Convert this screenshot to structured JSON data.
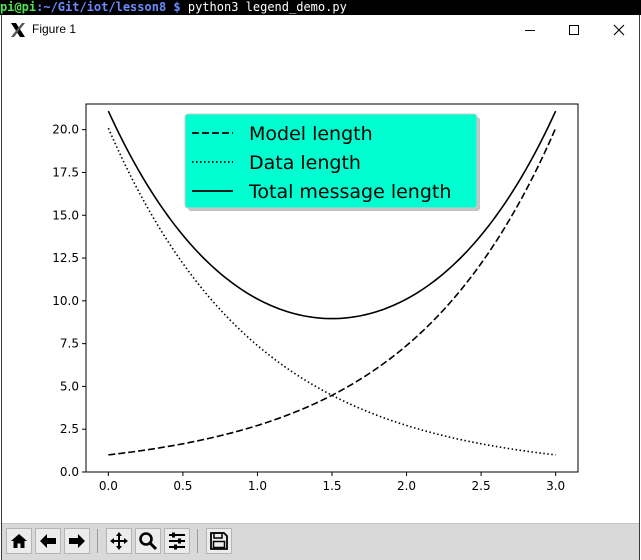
{
  "terminal": {
    "user_host": "pi@pi",
    "path": ":~/Git/iot/lesson8 $",
    "command": " python3 legend_demo.py"
  },
  "window": {
    "title": "Figure 1",
    "icon": "x-window-icon",
    "controls": [
      "minimize-icon",
      "maximize-icon",
      "close-icon"
    ]
  },
  "toolbar": {
    "buttons": [
      "home-icon",
      "back-arrow-icon",
      "forward-arrow-icon",
      "pan-icon",
      "zoom-icon",
      "subplots-config-icon",
      "save-icon"
    ]
  },
  "chart_data": {
    "type": "line",
    "x_range": [
      0.0,
      3.0
    ],
    "xlim": [
      -0.15,
      3.15
    ],
    "ylim": [
      0.0,
      21.5
    ],
    "x_ticks": [
      "0.0",
      "0.5",
      "1.0",
      "1.5",
      "2.0",
      "2.5",
      "3.0"
    ],
    "y_ticks": [
      "0.0",
      "2.5",
      "5.0",
      "7.5",
      "10.0",
      "12.5",
      "15.0",
      "17.5",
      "20.0"
    ],
    "legend_placement": "upper-center",
    "legend_background": "#00ffd0",
    "grid": false,
    "series": [
      {
        "name": "Model length",
        "style": "dashed",
        "x": [
          0.0,
          0.5,
          1.0,
          1.5,
          2.0,
          2.5,
          3.0
        ],
        "y": [
          1.0,
          1.65,
          2.72,
          4.48,
          7.39,
          12.18,
          20.09
        ]
      },
      {
        "name": "Data length",
        "style": "dotted",
        "x": [
          0.0,
          0.5,
          1.0,
          1.5,
          2.0,
          2.5,
          3.0
        ],
        "y": [
          20.09,
          12.18,
          7.39,
          4.48,
          2.72,
          1.65,
          1.0
        ]
      },
      {
        "name": "Total message length",
        "style": "solid",
        "x": [
          0.0,
          0.5,
          1.0,
          1.5,
          2.0,
          2.5,
          3.0
        ],
        "y": [
          21.09,
          13.83,
          10.11,
          8.96,
          10.11,
          13.83,
          21.09
        ]
      }
    ]
  }
}
